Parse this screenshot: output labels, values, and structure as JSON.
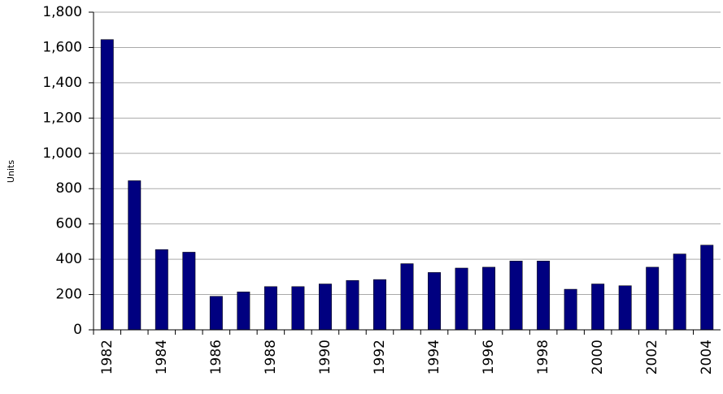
{
  "chart_data": {
    "type": "bar",
    "y_label": "Units",
    "categories": [
      "1982",
      null,
      "1984",
      null,
      "1986",
      null,
      "1988",
      null,
      "1990",
      null,
      "1992",
      null,
      "1994",
      null,
      "1996",
      null,
      "1998",
      null,
      "2000",
      null,
      "2002",
      null,
      "2004"
    ],
    "values": [
      1645,
      845,
      455,
      440,
      190,
      215,
      245,
      245,
      260,
      280,
      285,
      375,
      325,
      350,
      355,
      390,
      390,
      230,
      260,
      250,
      355,
      430,
      480
    ],
    "color": "#000080",
    "ylim": [
      0,
      1800
    ],
    "yticks": [
      0,
      200,
      400,
      600,
      800,
      {
        "value": 1000,
        "label": "1,000"
      },
      {
        "value": 1200,
        "label": "1,200"
      },
      {
        "value": 1400,
        "label": "1,400"
      },
      {
        "value": 1600,
        "label": "1,600"
      },
      {
        "value": 1800,
        "label": "1,800"
      }
    ],
    "grid": true
  }
}
